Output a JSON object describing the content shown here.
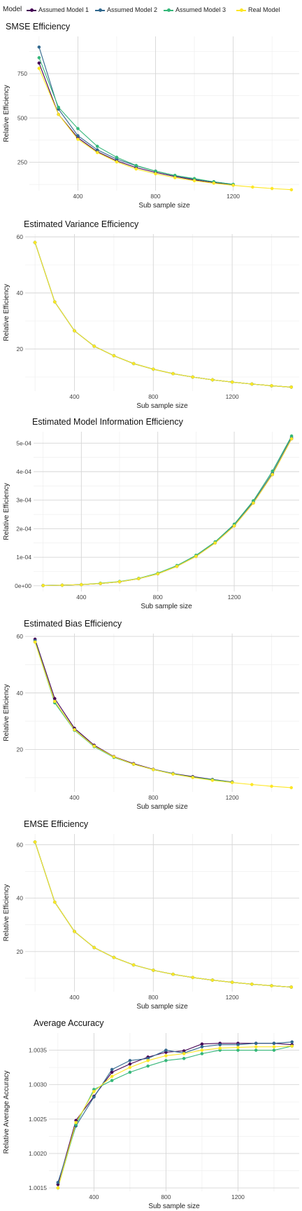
{
  "legend": {
    "title": "Model",
    "items": [
      {
        "label": "Assumed Model 1",
        "color": "#440154"
      },
      {
        "label": "Assumed Model 2",
        "color": "#31688E"
      },
      {
        "label": "Assumed Model 3",
        "color": "#35B779"
      },
      {
        "label": "Real Model",
        "color": "#FDE725"
      }
    ]
  },
  "chart_data": [
    {
      "type": "line",
      "title": "SMSE Efficiency",
      "xlabel": "Sub sample size",
      "ylabel": "Relative Efficiency",
      "xlim": [
        150,
        1540
      ],
      "ylim": [
        90,
        960
      ],
      "xticks": [
        400,
        800,
        1200
      ],
      "yticks": [
        250,
        500,
        750
      ],
      "ytick_labels": [
        "250",
        "500",
        "750"
      ],
      "series": [
        {
          "name": "Assumed Model 1",
          "x": [
            200,
            300,
            400,
            500,
            600,
            700,
            800,
            900,
            1000,
            1100,
            1200
          ],
          "y": [
            810,
            520,
            388,
            310,
            258,
            220,
            193,
            170,
            150,
            135,
            122
          ]
        },
        {
          "name": "Assumed Model 2",
          "x": [
            200,
            300,
            400,
            500,
            600,
            700,
            800,
            900,
            1000,
            1100,
            1200
          ],
          "y": [
            900,
            550,
            400,
            320,
            268,
            230,
            200,
            175,
            155,
            140,
            125
          ]
        },
        {
          "name": "Assumed Model 3",
          "x": [
            200,
            300,
            400,
            500,
            600,
            700,
            800,
            900,
            1000,
            1100,
            1200
          ],
          "y": [
            840,
            560,
            440,
            340,
            278,
            232,
            200,
            176,
            158,
            140,
            125
          ]
        },
        {
          "name": "Real Model",
          "x": [
            200,
            300,
            400,
            500,
            600,
            700,
            800,
            900,
            1000,
            1100,
            1200,
            1300,
            1400,
            1500
          ],
          "y": [
            780,
            520,
            380,
            305,
            252,
            212,
            185,
            163,
            146,
            132,
            120,
            110,
            102,
            95
          ]
        }
      ]
    },
    {
      "type": "line",
      "title": "Estimated Variance Efficiency",
      "xlabel": "Sub sample size",
      "ylabel": "Relative Efficiency",
      "xlim": [
        150,
        1540
      ],
      "ylim": [
        5,
        61
      ],
      "xticks": [
        400,
        800,
        1200
      ],
      "yticks": [
        20,
        40,
        60
      ],
      "ytick_labels": [
        "20",
        "40",
        "60"
      ],
      "series": [
        {
          "name": "Assumed Model 1",
          "x": [
            200,
            300,
            400,
            500,
            600,
            700,
            800,
            900,
            1000,
            1100,
            1200,
            1300,
            1400,
            1500
          ],
          "y": [
            58,
            36.8,
            26.5,
            21,
            17.6,
            14.8,
            12.8,
            11.2,
            10,
            9,
            8.2,
            7.5,
            6.9,
            6.4
          ]
        },
        {
          "name": "Assumed Model 2",
          "x": [
            200,
            300,
            400,
            500,
            600,
            700,
            800,
            900,
            1000,
            1100,
            1200,
            1300,
            1400,
            1500
          ],
          "y": [
            58,
            36.8,
            26.5,
            21,
            17.6,
            14.8,
            12.8,
            11.2,
            10,
            9,
            8.2,
            7.5,
            6.9,
            6.4
          ]
        },
        {
          "name": "Assumed Model 3",
          "x": [
            200,
            300,
            400,
            500,
            600,
            700,
            800,
            900,
            1000,
            1100,
            1200,
            1300,
            1400,
            1500
          ],
          "y": [
            58,
            36.8,
            26.5,
            21,
            17.6,
            14.8,
            12.8,
            11.2,
            10,
            9,
            8.2,
            7.5,
            6.9,
            6.4
          ]
        },
        {
          "name": "Real Model",
          "x": [
            200,
            300,
            400,
            500,
            600,
            700,
            800,
            900,
            1000,
            1100,
            1200,
            1300,
            1400,
            1500
          ],
          "y": [
            58,
            36.8,
            26.5,
            21,
            17.6,
            14.8,
            12.8,
            11.2,
            10,
            9,
            8.2,
            7.5,
            6.9,
            6.4
          ]
        }
      ]
    },
    {
      "type": "line",
      "title": "Estimated Model Information Efficiency",
      "xlabel": "Sub sample size",
      "ylabel": "Relative Efficiency",
      "xlim": [
        150,
        1540
      ],
      "ylim": [
        -2e-05,
        0.00054
      ],
      "xticks": [
        400,
        800,
        1200
      ],
      "yticks": [
        0,
        0.0001,
        0.0002,
        0.0003,
        0.0004,
        0.0005
      ],
      "ytick_labels": [
        "0e+00",
        "1e-04",
        "2e-04",
        "3e-04",
        "4e-04",
        "5e-04"
      ],
      "series": [
        {
          "name": "Assumed Model 1",
          "x": [
            200,
            300,
            400,
            500,
            600,
            700,
            800,
            900,
            1000,
            1100,
            1200,
            1300,
            1400,
            1500
          ],
          "y": [
            1e-06,
            2e-06,
            4e-06,
            8e-06,
            1.4e-05,
            2.5e-05,
            4.2e-05,
            6.8e-05,
            0.000103,
            0.00015,
            0.00021,
            0.00029,
            0.00039,
            0.000515
          ]
        },
        {
          "name": "Assumed Model 2",
          "x": [
            200,
            300,
            400,
            500,
            600,
            700,
            800,
            900,
            1000,
            1100,
            1200,
            1300,
            1400,
            1500
          ],
          "y": [
            1e-06,
            2e-06,
            4e-06,
            8e-06,
            1.4e-05,
            2.5e-05,
            4.2e-05,
            6.9e-05,
            0.000104,
            0.000152,
            0.000213,
            0.000294,
            0.000395,
            0.00052
          ]
        },
        {
          "name": "Assumed Model 3",
          "x": [
            200,
            300,
            400,
            500,
            600,
            700,
            800,
            900,
            1000,
            1100,
            1200,
            1300,
            1400,
            1500
          ],
          "y": [
            1e-06,
            2e-06,
            4e-06,
            9e-06,
            1.5e-05,
            2.6e-05,
            4.4e-05,
            7.1e-05,
            0.000107,
            0.000154,
            0.000216,
            0.000298,
            0.000402,
            0.000525
          ]
        },
        {
          "name": "Real Model",
          "x": [
            200,
            300,
            400,
            500,
            600,
            700,
            800,
            900,
            1000,
            1100,
            1200,
            1300,
            1400,
            1500
          ],
          "y": [
            1e-06,
            2e-06,
            4e-06,
            8e-06,
            1.4e-05,
            2.5e-05,
            4.2e-05,
            6.8e-05,
            0.000103,
            0.00015,
            0.00021,
            0.00029,
            0.00039,
            0.000515
          ]
        }
      ]
    },
    {
      "type": "line",
      "title": "Estimated Bias Efficiency",
      "xlabel": "Sub sample size",
      "ylabel": "Relative Efficiency",
      "xlim": [
        150,
        1540
      ],
      "ylim": [
        5,
        61
      ],
      "xticks": [
        400,
        800,
        1200
      ],
      "yticks": [
        20,
        40,
        60
      ],
      "ytick_labels": [
        "20",
        "40",
        "60"
      ],
      "series": [
        {
          "name": "Assumed Model 1",
          "x": [
            200,
            300,
            400,
            500,
            600,
            700,
            800,
            900,
            1000,
            1100,
            1200
          ],
          "y": [
            59,
            38,
            27.5,
            21.5,
            17.5,
            15,
            13,
            11.5,
            10.4,
            9.4,
            8.5
          ]
        },
        {
          "name": "Assumed Model 2",
          "x": [
            200,
            300,
            400,
            500,
            600,
            700,
            800,
            900,
            1000,
            1100,
            1200
          ],
          "y": [
            58.5,
            37,
            27,
            21.2,
            17.3,
            14.8,
            12.9,
            11.4,
            10.2,
            9.3,
            8.4
          ]
        },
        {
          "name": "Assumed Model 3",
          "x": [
            200,
            300,
            400,
            500,
            600,
            700,
            800,
            900,
            1000,
            1100,
            1200
          ],
          "y": [
            58,
            36.5,
            26.8,
            21,
            17.2,
            14.8,
            12.9,
            11.4,
            10.2,
            9.3,
            8.4
          ]
        },
        {
          "name": "Real Model",
          "x": [
            200,
            300,
            400,
            500,
            600,
            700,
            800,
            900,
            1000,
            1100,
            1200,
            1300,
            1400,
            1500
          ],
          "y": [
            58,
            37,
            27,
            21.2,
            17.4,
            14.8,
            12.9,
            11.3,
            10.1,
            9.1,
            8.3,
            7.6,
            7,
            6.5
          ]
        }
      ]
    },
    {
      "type": "line",
      "title": "EMSE Efficiency",
      "xlabel": "Sub sample size",
      "ylabel": "Relative Efficiency",
      "xlim": [
        150,
        1540
      ],
      "ylim": [
        5,
        64
      ],
      "xticks": [
        400,
        800,
        1200
      ],
      "yticks": [
        20,
        40,
        60
      ],
      "ytick_labels": [
        "20",
        "40",
        "60"
      ],
      "series": [
        {
          "name": "Assumed Model 1",
          "x": [
            200,
            300,
            400,
            500,
            600,
            700,
            800,
            900,
            1000,
            1100,
            1200,
            1300,
            1400,
            1500
          ],
          "y": [
            61,
            38.5,
            27.5,
            21.5,
            17.8,
            15,
            13,
            11.5,
            10.3,
            9.3,
            8.5,
            7.8,
            7.2,
            6.7
          ]
        },
        {
          "name": "Assumed Model 2",
          "x": [
            200,
            300,
            400,
            500,
            600,
            700,
            800,
            900,
            1000,
            1100,
            1200,
            1300,
            1400,
            1500
          ],
          "y": [
            61,
            38.5,
            27.5,
            21.5,
            17.8,
            15,
            13,
            11.5,
            10.3,
            9.3,
            8.5,
            7.8,
            7.2,
            6.7
          ]
        },
        {
          "name": "Assumed Model 3",
          "x": [
            200,
            300,
            400,
            500,
            600,
            700,
            800,
            900,
            1000,
            1100,
            1200,
            1300,
            1400,
            1500
          ],
          "y": [
            61,
            38.5,
            27.5,
            21.5,
            17.8,
            15,
            13,
            11.5,
            10.3,
            9.3,
            8.5,
            7.8,
            7.2,
            6.7
          ]
        },
        {
          "name": "Real Model",
          "x": [
            200,
            300,
            400,
            500,
            600,
            700,
            800,
            900,
            1000,
            1100,
            1200,
            1300,
            1400,
            1500
          ],
          "y": [
            61,
            38.5,
            27.5,
            21.5,
            17.8,
            15,
            13,
            11.5,
            10.3,
            9.3,
            8.5,
            7.8,
            7.2,
            6.7
          ]
        }
      ]
    },
    {
      "type": "line",
      "title": "Average Accuracy",
      "xlabel": "Sub sample size",
      "ylabel": "Relative Average Accuracy",
      "xlim": [
        150,
        1540
      ],
      "ylim": [
        1.00145,
        1.00375
      ],
      "xticks": [
        400,
        800,
        1200
      ],
      "yticks": [
        1.0015,
        1.002,
        1.0025,
        1.003,
        1.0035
      ],
      "ytick_labels": [
        "1.0015",
        "1.0020",
        "1.0025",
        "1.0030",
        "1.0035"
      ],
      "series": [
        {
          "name": "Assumed Model 1",
          "x": [
            200,
            300,
            400,
            500,
            600,
            700,
            800,
            900,
            1000,
            1100,
            1200,
            1300,
            1400,
            1500
          ],
          "y": [
            1.00155,
            1.00248,
            1.00283,
            1.00318,
            1.0033,
            1.0034,
            1.00347,
            1.00349,
            1.00359,
            1.0036,
            1.0036,
            1.0036,
            1.0036,
            1.00358
          ]
        },
        {
          "name": "Assumed Model 2",
          "x": [
            200,
            300,
            400,
            500,
            600,
            700,
            800,
            900,
            1000,
            1100,
            1200,
            1300,
            1400,
            1500
          ],
          "y": [
            1.00158,
            1.0024,
            1.00282,
            1.00322,
            1.00335,
            1.00338,
            1.0035,
            1.00346,
            1.00355,
            1.00358,
            1.00358,
            1.0036,
            1.0036,
            1.00362
          ]
        },
        {
          "name": "Assumed Model 3",
          "x": [
            200,
            300,
            400,
            500,
            600,
            700,
            800,
            900,
            1000,
            1100,
            1200,
            1300,
            1400,
            1500
          ],
          "y": [
            1.0015,
            1.00242,
            1.00293,
            1.00306,
            1.00318,
            1.00327,
            1.00335,
            1.00338,
            1.00345,
            1.0035,
            1.0035,
            1.0035,
            1.0035,
            1.00356
          ]
        },
        {
          "name": "Real Model",
          "x": [
            200,
            300,
            400,
            500,
            600,
            700,
            800,
            900,
            1000,
            1100,
            1200,
            1300,
            1400,
            1500
          ],
          "y": [
            1.0015,
            1.00245,
            1.0029,
            1.00312,
            1.00325,
            1.00335,
            1.00342,
            1.00345,
            1.0035,
            1.00353,
            1.00354,
            1.00355,
            1.00355,
            1.00356
          ]
        }
      ]
    }
  ]
}
